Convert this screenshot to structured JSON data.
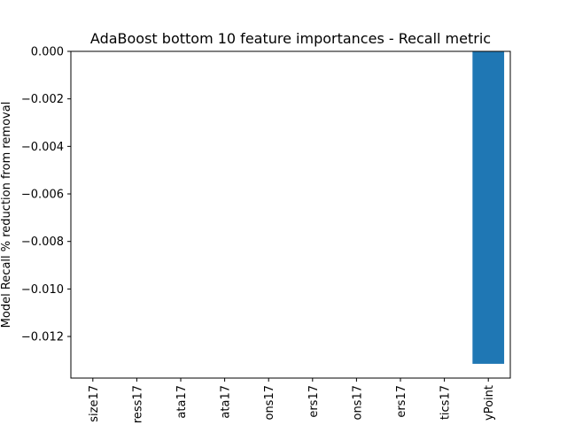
{
  "chart_data": {
    "type": "bar",
    "title": "AdaBoost bottom 10 feature importances - Recall metric",
    "xlabel": "",
    "ylabel": "Model Recall % reduction from removal",
    "categories": [
      "size17",
      "ress17",
      "ata17",
      "ata17",
      "ons17",
      "ers17",
      "ons17",
      "ers17",
      "tics17",
      "yPoint"
    ],
    "values": [
      0,
      0,
      0,
      0,
      0,
      0,
      0,
      0,
      0,
      -0.01315
    ],
    "ylim": [
      -0.01375,
      0.0
    ],
    "yticks": [
      0.0,
      -0.002,
      -0.004,
      -0.006,
      -0.008,
      -0.01,
      -0.012
    ],
    "ytick_labels": [
      "0.000",
      "−0.002",
      "−0.004",
      "−0.006",
      "−0.008",
      "−0.010",
      "−0.012"
    ],
    "grid": false,
    "bar_color": "#1f77b4"
  }
}
